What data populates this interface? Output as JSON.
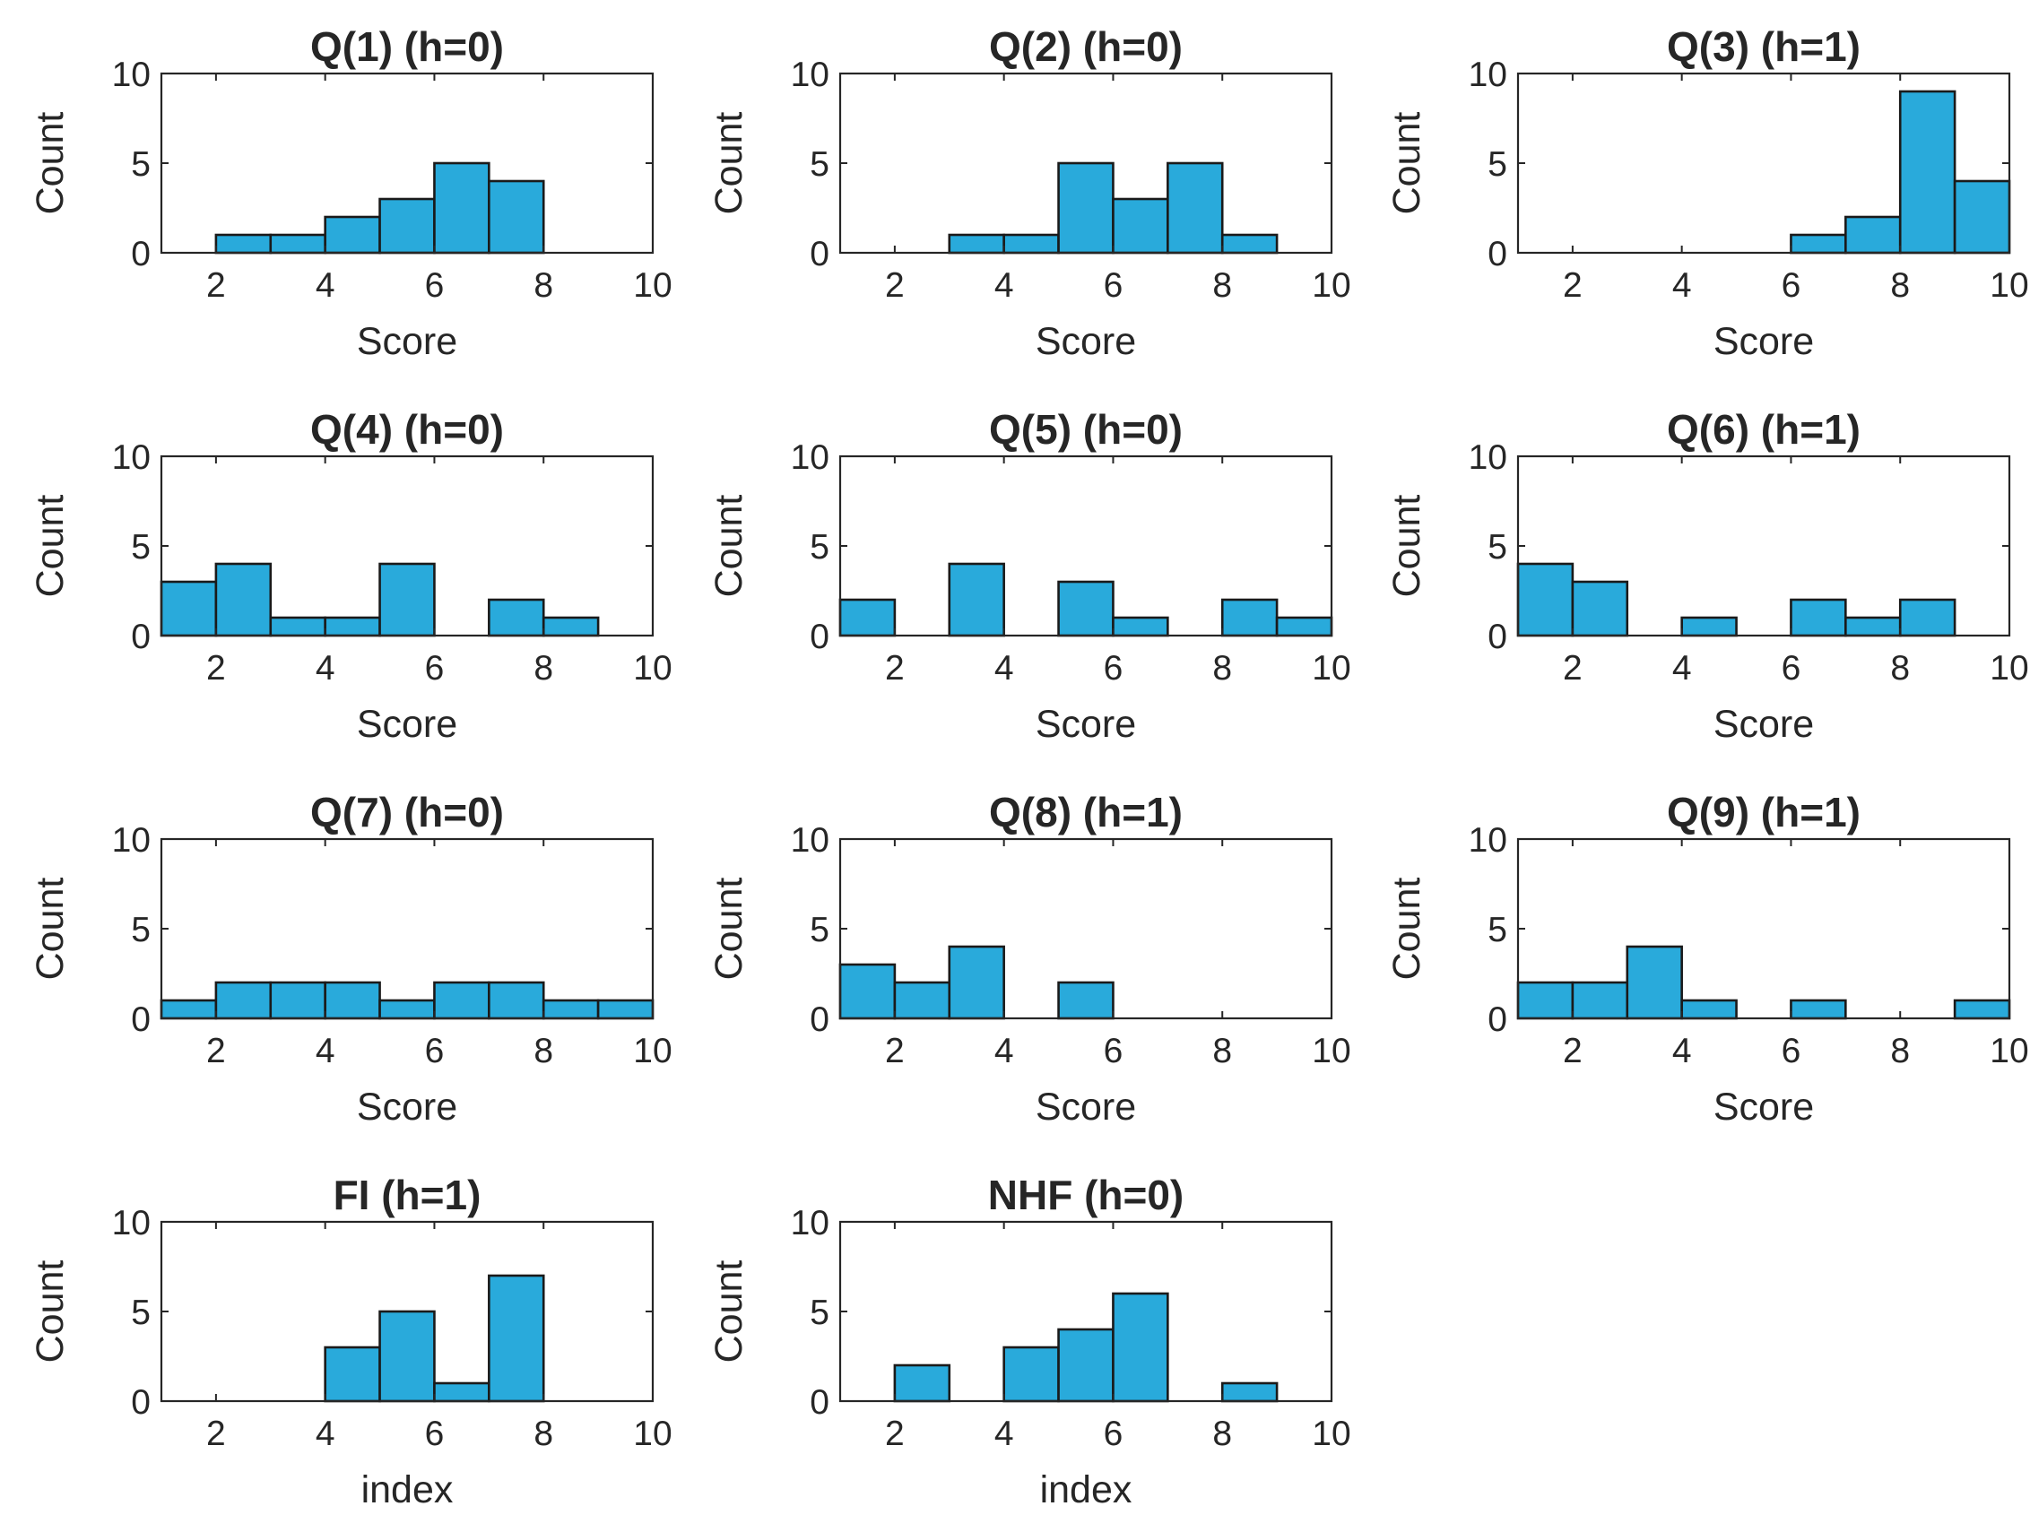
{
  "chart_data": [
    {
      "type": "bar",
      "title": "Q(1) (h=0)",
      "xlabel": "Score",
      "ylabel": "Count",
      "xlim": [
        1,
        10
      ],
      "ylim": [
        0,
        10
      ],
      "xticks": [
        "2",
        "4",
        "6",
        "8",
        "10"
      ],
      "yticks": [
        "0",
        "5",
        "10"
      ],
      "bin_edges": [
        1,
        2,
        3,
        4,
        5,
        6,
        7,
        8,
        9,
        10
      ],
      "values": [
        0,
        1,
        1,
        2,
        3,
        5,
        4,
        0,
        0
      ]
    },
    {
      "type": "bar",
      "title": "Q(2) (h=0)",
      "xlabel": "Score",
      "ylabel": "Count",
      "xlim": [
        1,
        10
      ],
      "ylim": [
        0,
        10
      ],
      "xticks": [
        "2",
        "4",
        "6",
        "8",
        "10"
      ],
      "yticks": [
        "0",
        "5",
        "10"
      ],
      "bin_edges": [
        1,
        2,
        3,
        4,
        5,
        6,
        7,
        8,
        9,
        10
      ],
      "values": [
        0,
        0,
        1,
        1,
        5,
        3,
        5,
        1,
        0
      ]
    },
    {
      "type": "bar",
      "title": "Q(3) (h=1)",
      "xlabel": "Score",
      "ylabel": "Count",
      "xlim": [
        1,
        10
      ],
      "ylim": [
        0,
        10
      ],
      "xticks": [
        "2",
        "4",
        "6",
        "8",
        "10"
      ],
      "yticks": [
        "0",
        "5",
        "10"
      ],
      "bin_edges": [
        1,
        2,
        3,
        4,
        5,
        6,
        7,
        8,
        9,
        10
      ],
      "values": [
        0,
        0,
        0,
        0,
        0,
        1,
        2,
        9,
        4
      ]
    },
    {
      "type": "bar",
      "title": "Q(4) (h=0)",
      "xlabel": "Score",
      "ylabel": "Count",
      "xlim": [
        1,
        10
      ],
      "ylim": [
        0,
        10
      ],
      "xticks": [
        "2",
        "4",
        "6",
        "8",
        "10"
      ],
      "yticks": [
        "0",
        "5",
        "10"
      ],
      "bin_edges": [
        1,
        2,
        3,
        4,
        5,
        6,
        7,
        8,
        9,
        10
      ],
      "values": [
        3,
        4,
        1,
        1,
        4,
        0,
        2,
        1,
        0
      ]
    },
    {
      "type": "bar",
      "title": "Q(5) (h=0)",
      "xlabel": "Score",
      "ylabel": "Count",
      "xlim": [
        1,
        10
      ],
      "ylim": [
        0,
        10
      ],
      "xticks": [
        "2",
        "4",
        "6",
        "8",
        "10"
      ],
      "yticks": [
        "0",
        "5",
        "10"
      ],
      "bin_edges": [
        1,
        2,
        3,
        4,
        5,
        6,
        7,
        8,
        9,
        10
      ],
      "values": [
        2,
        0,
        4,
        0,
        3,
        1,
        0,
        2,
        1
      ]
    },
    {
      "type": "bar",
      "title": "Q(6) (h=1)",
      "xlabel": "Score",
      "ylabel": "Count",
      "xlim": [
        1,
        10
      ],
      "ylim": [
        0,
        10
      ],
      "xticks": [
        "2",
        "4",
        "6",
        "8",
        "10"
      ],
      "yticks": [
        "0",
        "5",
        "10"
      ],
      "bin_edges": [
        1,
        2,
        3,
        4,
        5,
        6,
        7,
        8,
        9,
        10
      ],
      "values": [
        4,
        3,
        0,
        1,
        0,
        2,
        1,
        2,
        0
      ]
    },
    {
      "type": "bar",
      "title": "Q(7) (h=0)",
      "xlabel": "Score",
      "ylabel": "Count",
      "xlim": [
        1,
        10
      ],
      "ylim": [
        0,
        10
      ],
      "xticks": [
        "2",
        "4",
        "6",
        "8",
        "10"
      ],
      "yticks": [
        "0",
        "5",
        "10"
      ],
      "bin_edges": [
        1,
        2,
        3,
        4,
        5,
        6,
        7,
        8,
        9,
        10
      ],
      "values": [
        1,
        2,
        2,
        2,
        1,
        2,
        2,
        1,
        1
      ]
    },
    {
      "type": "bar",
      "title": "Q(8) (h=1)",
      "xlabel": "Score",
      "ylabel": "Count",
      "xlim": [
        1,
        10
      ],
      "ylim": [
        0,
        10
      ],
      "xticks": [
        "2",
        "4",
        "6",
        "8",
        "10"
      ],
      "yticks": [
        "0",
        "5",
        "10"
      ],
      "bin_edges": [
        1,
        2,
        3,
        4,
        5,
        6,
        7,
        8,
        9,
        10
      ],
      "values": [
        3,
        2,
        4,
        0,
        2,
        0,
        0,
        0,
        0
      ]
    },
    {
      "type": "bar",
      "title": "Q(9) (h=1)",
      "xlabel": "Score",
      "ylabel": "Count",
      "xlim": [
        1,
        10
      ],
      "ylim": [
        0,
        10
      ],
      "xticks": [
        "2",
        "4",
        "6",
        "8",
        "10"
      ],
      "yticks": [
        "0",
        "5",
        "10"
      ],
      "bin_edges": [
        1,
        2,
        3,
        4,
        5,
        6,
        7,
        8,
        9,
        10
      ],
      "values": [
        2,
        2,
        4,
        1,
        0,
        1,
        0,
        0,
        1
      ]
    },
    {
      "type": "bar",
      "title": "FI (h=1)",
      "xlabel": "index",
      "ylabel": "Count",
      "xlim": [
        1,
        10
      ],
      "ylim": [
        0,
        10
      ],
      "xticks": [
        "2",
        "4",
        "6",
        "8",
        "10"
      ],
      "yticks": [
        "0",
        "5",
        "10"
      ],
      "bin_edges": [
        1,
        2,
        3,
        4,
        5,
        6,
        7,
        8,
        9,
        10
      ],
      "values": [
        0,
        0,
        0,
        3,
        5,
        1,
        7,
        0,
        0
      ]
    },
    {
      "type": "bar",
      "title": "NHF (h=0)",
      "xlabel": "index",
      "ylabel": "Count",
      "xlim": [
        1,
        10
      ],
      "ylim": [
        0,
        10
      ],
      "xticks": [
        "2",
        "4",
        "6",
        "8",
        "10"
      ],
      "yticks": [
        "0",
        "5",
        "10"
      ],
      "bin_edges": [
        1,
        2,
        3,
        4,
        5,
        6,
        7,
        8,
        9,
        10
      ],
      "values": [
        0,
        2,
        0,
        3,
        4,
        6,
        0,
        1,
        0
      ]
    }
  ]
}
